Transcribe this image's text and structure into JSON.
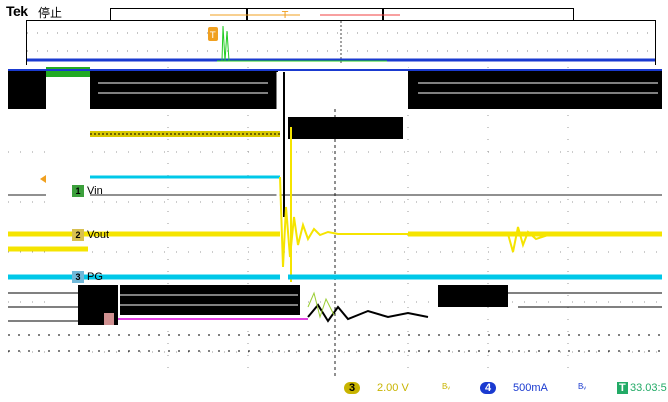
{
  "header": {
    "brand": "Tek",
    "status": "停止"
  },
  "channels": [
    {
      "num": "1",
      "label": "Vin",
      "color": "#00c8e8",
      "badge": "#3ca03c"
    },
    {
      "num": "2",
      "label": "Vout",
      "color": "#f5e400",
      "badge": "#d8c050"
    },
    {
      "num": "3",
      "label": "PG",
      "color": "#00c8e8",
      "badge": "#70b8d8"
    }
  ],
  "readout": {
    "ch3_num": "3",
    "ch3_scale": "2.00 V",
    "bw_glyph": "Bᵥ",
    "ch4_num": "4",
    "ch4_scale": "500mA",
    "bw_glyph2": "Bᵥ",
    "trig_time_prefix": "T",
    "trig_time": "33.03:5"
  },
  "colors": {
    "yellow": "#f5e400",
    "cyan": "#00c8e8",
    "green": "#22cc22",
    "magenta": "#e040e0",
    "orange": "#f0a020",
    "blue": "#1a3ad0"
  }
}
